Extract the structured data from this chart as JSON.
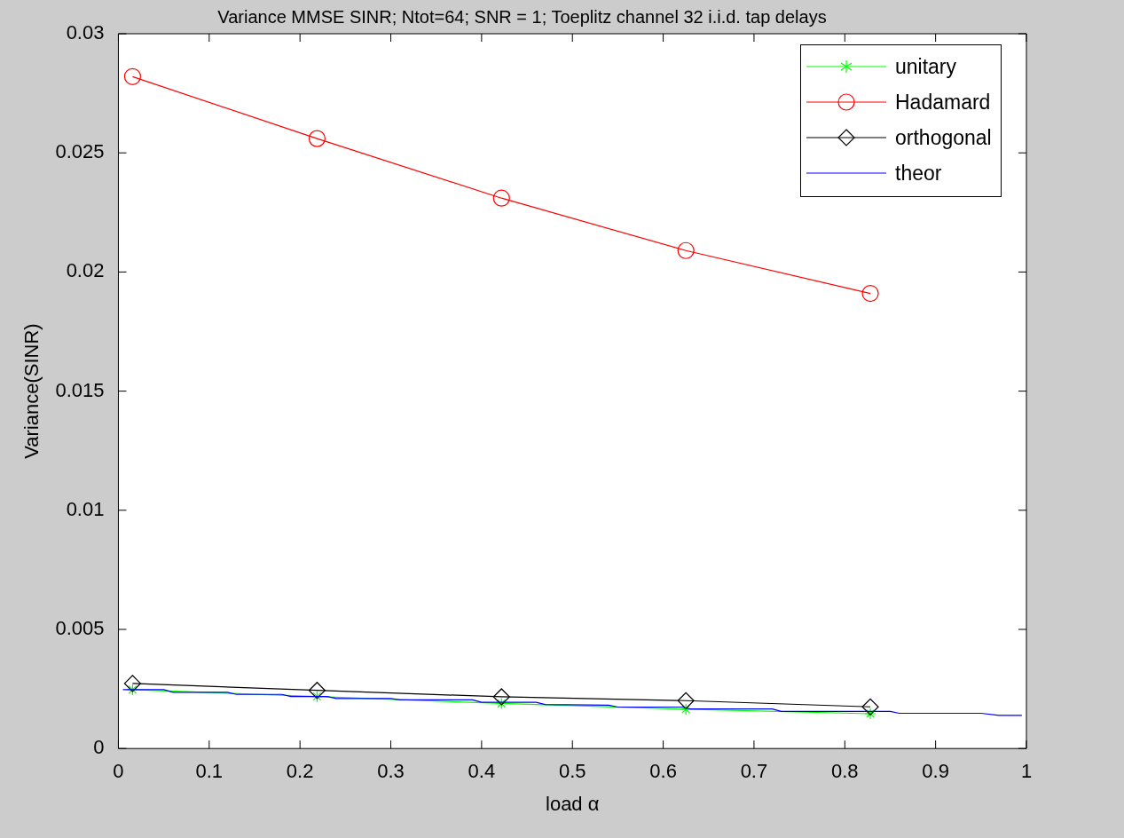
{
  "chart_data": {
    "type": "line",
    "title": "Variance MMSE SINR; Ntot=64; SNR = 1; Toeplitz channel 32 i.i.d. tap delays",
    "xlabel": "load α",
    "ylabel": "Variance(SINR)",
    "xlim": [
      0,
      1
    ],
    "xticks": [
      0,
      0.1,
      0.2,
      0.3,
      0.4,
      0.5,
      0.6,
      0.7,
      0.8,
      0.9,
      1
    ],
    "ylim": [
      0,
      0.03
    ],
    "yticks": [
      0,
      0.005,
      0.01,
      0.015,
      0.02,
      0.025,
      0.03
    ],
    "grid": false,
    "legend": "top right",
    "line_style": "solid",
    "series": [
      {
        "name": "unitary",
        "color": "#00ff00",
        "marker": "cross",
        "x": [
          0.0156,
          0.2188,
          0.4219,
          0.625,
          0.8281
        ],
        "values": [
          0.00247,
          0.00218,
          0.00189,
          0.00165,
          0.00146
        ]
      },
      {
        "name": "Hadamard",
        "color": "#ff0000",
        "marker": "circle",
        "x": [
          0.0156,
          0.2188,
          0.4219,
          0.625,
          0.8281
        ],
        "values": [
          0.0282,
          0.0256,
          0.0231,
          0.0209,
          0.0191
        ]
      },
      {
        "name": "orthogonal",
        "color": "#000000",
        "marker": "diamond",
        "x": [
          0.0156,
          0.2188,
          0.4219,
          0.625,
          0.8281
        ],
        "values": [
          0.00273,
          0.00244,
          0.00217,
          0.00201,
          0.00175
        ]
      },
      {
        "name": "theor",
        "color": "#0000ff",
        "marker": "none",
        "x": [
          0.005,
          0.05,
          0.06,
          0.12,
          0.13,
          0.18,
          0.19,
          0.23,
          0.24,
          0.3,
          0.31,
          0.39,
          0.4,
          0.46,
          0.47,
          0.54,
          0.55,
          0.62,
          0.63,
          0.72,
          0.73,
          0.85,
          0.86,
          0.95,
          0.97,
          0.995
        ],
        "values": [
          0.00247,
          0.00247,
          0.00236,
          0.00236,
          0.00227,
          0.00227,
          0.00218,
          0.00218,
          0.0021,
          0.0021,
          0.00204,
          0.00204,
          0.00194,
          0.00194,
          0.00185,
          0.00182,
          0.00174,
          0.00174,
          0.00166,
          0.00166,
          0.00156,
          0.00156,
          0.00148,
          0.00148,
          0.00139,
          0.00139
        ]
      }
    ]
  }
}
